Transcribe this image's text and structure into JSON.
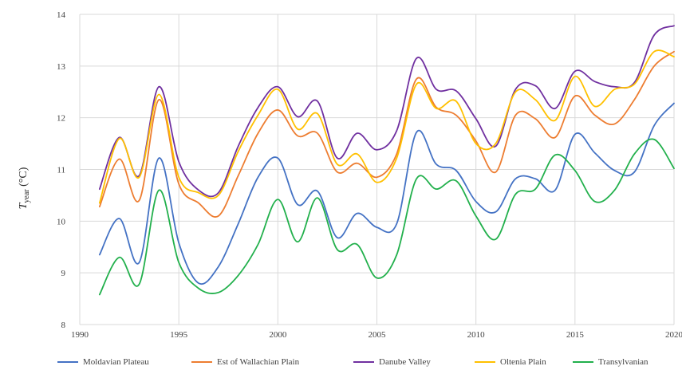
{
  "chart_data": {
    "type": "line",
    "ylabel": {
      "main": "T",
      "sub": "year",
      "unit": " (°C)"
    },
    "xlim": [
      1990,
      2020
    ],
    "ylim": [
      8,
      14
    ],
    "x_ticks": [
      "1990",
      "1995",
      "2000",
      "2005",
      "2010",
      "2015",
      "2020"
    ],
    "y_ticks": [
      "8",
      "9",
      "10",
      "11",
      "12",
      "13",
      "14"
    ],
    "grid": true,
    "legend_position": "bottom",
    "x": [
      1991,
      1992,
      1993,
      1994,
      1995,
      1996,
      1997,
      1998,
      1999,
      2000,
      2001,
      2002,
      2003,
      2004,
      2005,
      2006,
      2007,
      2008,
      2009,
      2010,
      2011,
      2012,
      2013,
      2014,
      2015,
      2016,
      2017,
      2018,
      2019,
      2020
    ],
    "series": [
      {
        "name": "Moldavian Plateau",
        "color": "#4472C4",
        "values": [
          9.35,
          10.05,
          9.2,
          11.22,
          9.58,
          8.8,
          9.12,
          9.95,
          10.85,
          11.22,
          10.32,
          10.58,
          9.68,
          10.15,
          9.88,
          9.95,
          11.72,
          11.1,
          10.98,
          10.38,
          10.18,
          10.82,
          10.82,
          10.6,
          11.68,
          11.32,
          10.98,
          10.95,
          11.85,
          12.28
        ]
      },
      {
        "name": "Est of Wallachian Plain",
        "color": "#ED7D31",
        "values": [
          10.28,
          11.2,
          10.4,
          12.35,
          10.72,
          10.35,
          10.1,
          10.88,
          11.7,
          12.15,
          11.65,
          11.7,
          10.95,
          11.12,
          10.85,
          11.3,
          12.75,
          12.2,
          12.05,
          11.55,
          10.95,
          12.05,
          11.98,
          11.62,
          12.42,
          12.05,
          11.88,
          12.35,
          13.0,
          13.28
        ]
      },
      {
        "name": "Danube Valley",
        "color": "#7030A0",
        "values": [
          10.62,
          11.62,
          10.88,
          12.6,
          11.15,
          10.6,
          10.55,
          11.45,
          12.2,
          12.6,
          12.02,
          12.32,
          11.22,
          11.7,
          11.38,
          11.75,
          13.15,
          12.55,
          12.52,
          11.98,
          11.45,
          12.55,
          12.62,
          12.18,
          12.9,
          12.7,
          12.6,
          12.68,
          13.6,
          13.78
        ]
      },
      {
        "name": "Oltenia Plain",
        "color": "#FFC000",
        "values": [
          10.35,
          11.6,
          10.85,
          12.45,
          10.85,
          10.55,
          10.5,
          11.35,
          12.05,
          12.55,
          11.78,
          12.08,
          11.1,
          11.3,
          10.75,
          11.22,
          12.65,
          12.18,
          12.32,
          11.5,
          11.5,
          12.5,
          12.35,
          11.95,
          12.8,
          12.22,
          12.55,
          12.65,
          13.28,
          13.18
        ]
      },
      {
        "name": "Transylvanian",
        "color": "#22B04C",
        "values": [
          8.58,
          9.3,
          8.78,
          10.6,
          9.2,
          8.7,
          8.62,
          8.95,
          9.55,
          10.42,
          9.6,
          10.45,
          9.45,
          9.55,
          8.9,
          9.35,
          10.82,
          10.62,
          10.78,
          10.1,
          9.65,
          10.52,
          10.62,
          11.28,
          10.98,
          10.38,
          10.6,
          11.3,
          11.58,
          11.02
        ]
      }
    ]
  }
}
